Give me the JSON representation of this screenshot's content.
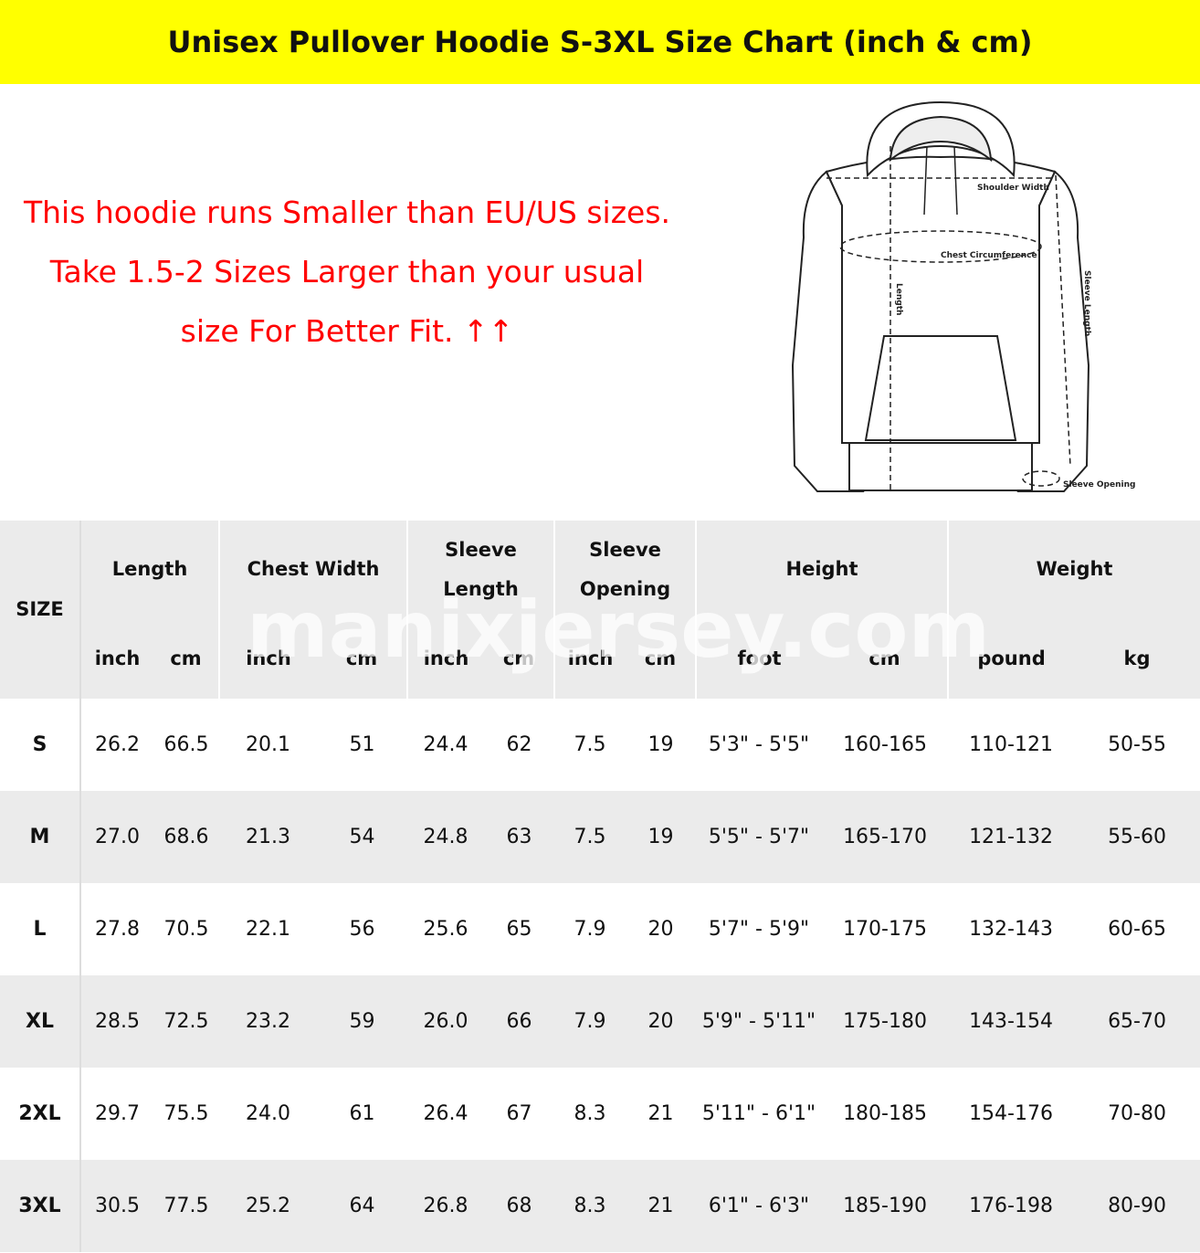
{
  "header": {
    "title": "Unisex Pullover Hoodie S-3XL Size Chart (inch & cm)"
  },
  "notice": {
    "lines": [
      "This hoodie runs Smaller than EU/US sizes.",
      "Take 1.5-2 Sizes Larger than your usual size For Better Fit. ↑↑"
    ]
  },
  "diagram": {
    "labels": [
      "Shoulder Width",
      "Chest Circumference",
      "Length",
      "Sleeve Length",
      "Sleeve Opening"
    ]
  },
  "watermark": "manixjersey.com",
  "table": {
    "size_header": "SIZE",
    "groups": [
      {
        "label": "Length",
        "units": [
          "inch",
          "cm"
        ]
      },
      {
        "label": "Chest Width",
        "units": [
          "inch",
          "cm"
        ]
      },
      {
        "label": "Sleeve Length",
        "units": [
          "inch",
          "cm"
        ]
      },
      {
        "label": "Sleeve Opening",
        "units": [
          "inch",
          "cm"
        ]
      },
      {
        "label": "Height",
        "units": [
          "foot",
          "cm"
        ]
      },
      {
        "label": "Weight",
        "units": [
          "pound",
          "kg"
        ]
      }
    ],
    "rows": [
      [
        "S",
        "26.2",
        "66.5",
        "20.1",
        "51",
        "24.4",
        "62",
        "7.5",
        "19",
        "5'3\" - 5'5\"",
        "160-165",
        "110-121",
        "50-55"
      ],
      [
        "M",
        "27.0",
        "68.6",
        "21.3",
        "54",
        "24.8",
        "63",
        "7.5",
        "19",
        "5'5\" - 5'7\"",
        "165-170",
        "121-132",
        "55-60"
      ],
      [
        "L",
        "27.8",
        "70.5",
        "22.1",
        "56",
        "25.6",
        "65",
        "7.9",
        "20",
        "5'7\" - 5'9\"",
        "170-175",
        "132-143",
        "60-65"
      ],
      [
        "XL",
        "28.5",
        "72.5",
        "23.2",
        "59",
        "26.0",
        "66",
        "7.9",
        "20",
        "5'9\" - 5'11\"",
        "175-180",
        "143-154",
        "65-70"
      ],
      [
        "2XL",
        "29.7",
        "75.5",
        "24.0",
        "61",
        "26.4",
        "67",
        "8.3",
        "21",
        "5'11\" - 6'1\"",
        "180-185",
        "154-176",
        "70-80"
      ],
      [
        "3XL",
        "30.5",
        "77.5",
        "25.2",
        "64",
        "26.8",
        "68",
        "8.3",
        "21",
        "6'1\" - 6'3\"",
        "185-190",
        "176-198",
        "80-90"
      ]
    ]
  }
}
